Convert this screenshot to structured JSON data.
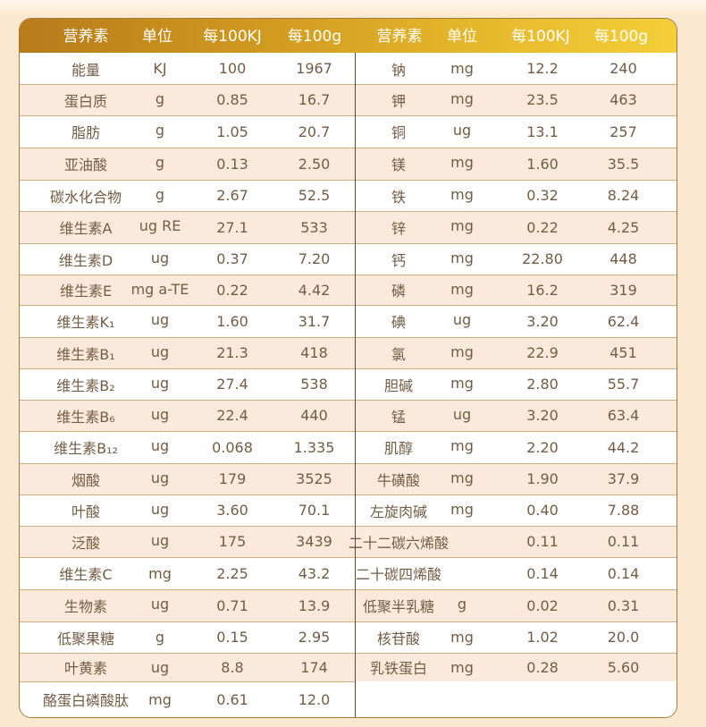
{
  "header": {
    "nutrient": "营养素",
    "unit": "单位",
    "per100kj": "每100KJ",
    "per100g": "每100g"
  },
  "left_rows": [
    {
      "nutrient": "能量",
      "unit": "KJ",
      "per100kj": "100",
      "per100g": "1967"
    },
    {
      "nutrient": "蛋白质",
      "unit": "g",
      "per100kj": "0.85",
      "per100g": "16.7"
    },
    {
      "nutrient": "脂肪",
      "unit": "g",
      "per100kj": "1.05",
      "per100g": "20.7"
    },
    {
      "nutrient": "亚油酸",
      "unit": "g",
      "per100kj": "0.13",
      "per100g": "2.50"
    },
    {
      "nutrient": "碳水化合物",
      "unit": "g",
      "per100kj": "2.67",
      "per100g": "52.5"
    },
    {
      "nutrient": "维生素A",
      "unit": "ug RE",
      "per100kj": "27.1",
      "per100g": "533"
    },
    {
      "nutrient": "维生素D",
      "unit": "ug",
      "per100kj": "0.37",
      "per100g": "7.20"
    },
    {
      "nutrient": "维生素E",
      "unit": "mg a-TE",
      "per100kj": "0.22",
      "per100g": "4.42"
    },
    {
      "nutrient": "维生素K₁",
      "unit": "ug",
      "per100kj": "1.60",
      "per100g": "31.7"
    },
    {
      "nutrient": "维生素B₁",
      "unit": "ug",
      "per100kj": "21.3",
      "per100g": "418"
    },
    {
      "nutrient": "维生素B₂",
      "unit": "ug",
      "per100kj": "27.4",
      "per100g": "538"
    },
    {
      "nutrient": "维生素B₆",
      "unit": "ug",
      "per100kj": "22.4",
      "per100g": "440"
    },
    {
      "nutrient": "维生素B₁₂",
      "unit": "ug",
      "per100kj": "0.068",
      "per100g": "1.335"
    },
    {
      "nutrient": "烟酸",
      "unit": "ug",
      "per100kj": "179",
      "per100g": "3525"
    },
    {
      "nutrient": "叶酸",
      "unit": "ug",
      "per100kj": "3.60",
      "per100g": "70.1"
    },
    {
      "nutrient": "泛酸",
      "unit": "ug",
      "per100kj": "175",
      "per100g": "3439"
    },
    {
      "nutrient": "维生素C",
      "unit": "mg",
      "per100kj": "2.25",
      "per100g": "43.2"
    },
    {
      "nutrient": "生物素",
      "unit": "ug",
      "per100kj": "0.71",
      "per100g": "13.9"
    },
    {
      "nutrient": "低聚果糖",
      "unit": "g",
      "per100kj": "0.15",
      "per100g": "2.95"
    },
    {
      "nutrient": "叶黄素",
      "unit": "ug",
      "per100kj": "8.8",
      "per100g": "174"
    },
    {
      "nutrient": "酪蛋白磷酸肽",
      "unit": "mg",
      "per100kj": "0.61",
      "per100g": "12.0"
    }
  ],
  "right_rows": [
    {
      "nutrient": "钠",
      "unit": "mg",
      "per100kj": "12.2",
      "per100g": "240"
    },
    {
      "nutrient": "钾",
      "unit": "mg",
      "per100kj": "23.5",
      "per100g": "463"
    },
    {
      "nutrient": "铜",
      "unit": "ug",
      "per100kj": "13.1",
      "per100g": "257"
    },
    {
      "nutrient": "镁",
      "unit": "mg",
      "per100kj": "1.60",
      "per100g": "35.5"
    },
    {
      "nutrient": "铁",
      "unit": "mg",
      "per100kj": "0.32",
      "per100g": "8.24"
    },
    {
      "nutrient": "锌",
      "unit": "mg",
      "per100kj": "0.22",
      "per100g": "4.25"
    },
    {
      "nutrient": "钙",
      "unit": "mg",
      "per100kj": "22.80",
      "per100g": "448"
    },
    {
      "nutrient": "磷",
      "unit": "mg",
      "per100kj": "16.2",
      "per100g": "319"
    },
    {
      "nutrient": "碘",
      "unit": "ug",
      "per100kj": "3.20",
      "per100g": "62.4"
    },
    {
      "nutrient": "氯",
      "unit": "mg",
      "per100kj": "22.9",
      "per100g": "451"
    },
    {
      "nutrient": "胆碱",
      "unit": "mg",
      "per100kj": "2.80",
      "per100g": "55.7"
    },
    {
      "nutrient": "锰",
      "unit": "ug",
      "per100kj": "3.20",
      "per100g": "63.4"
    },
    {
      "nutrient": "肌醇",
      "unit": "mg",
      "per100kj": "2.20",
      "per100g": "44.2"
    },
    {
      "nutrient": "牛磺酸",
      "unit": "mg",
      "per100kj": "1.90",
      "per100g": "37.9"
    },
    {
      "nutrient": "左旋肉碱",
      "unit": "mg",
      "per100kj": "0.40",
      "per100g": "7.88"
    },
    {
      "nutrient": "二十二碳六烯酸",
      "unit": "",
      "per100kj": "0.11",
      "per100g": "0.11"
    },
    {
      "nutrient": "二十碳四烯酸",
      "unit": "",
      "per100kj": "0.14",
      "per100g": "0.14"
    },
    {
      "nutrient": "低聚半乳糖",
      "unit": "g",
      "per100kj": "0.02",
      "per100g": "0.31"
    },
    {
      "nutrient": "核苷酸",
      "unit": "mg",
      "per100kj": "1.02",
      "per100g": "20.0"
    },
    {
      "nutrient": "乳铁蛋白",
      "unit": "mg",
      "per100kj": "0.28",
      "per100g": "5.60"
    }
  ]
}
